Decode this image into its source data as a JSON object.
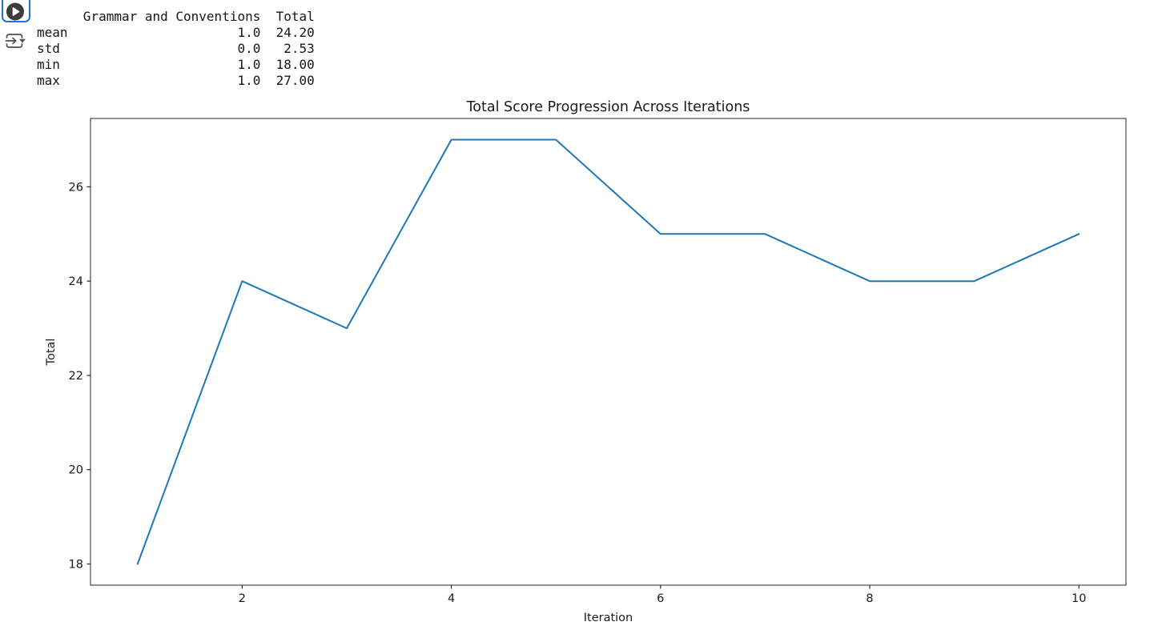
{
  "toolbar": {
    "run_cell_icon": "play-circle",
    "run_below_icon": "run-below-arrow"
  },
  "colors": {
    "cell_focus_border": "#2171d6",
    "run_button_fill": "#3c3c3c",
    "toolbar_icon": "#4f4f4f",
    "chart_text": "#1a1a1a",
    "axis": "#262626"
  },
  "output_table": {
    "columns": [
      "",
      "Grammar and Conventions",
      "Total"
    ],
    "rows": [
      {
        "index": "mean",
        "grammar_and_conventions": "1.0",
        "total": "24.20"
      },
      {
        "index": "std",
        "grammar_and_conventions": "0.0",
        "total": "2.53"
      },
      {
        "index": "min",
        "grammar_and_conventions": "1.0",
        "total": "18.00"
      },
      {
        "index": "max",
        "grammar_and_conventions": "1.0",
        "total": "27.00"
      }
    ],
    "lines": [
      "      Grammar and Conventions  Total",
      "mean                      1.0  24.20",
      "std                       0.0   2.53",
      "min                       1.0  18.00",
      "max                       1.0  27.00"
    ]
  },
  "chart_data": {
    "type": "line",
    "title": "Total Score Progression Across Iterations",
    "xlabel": "Iteration",
    "ylabel": "Total",
    "x": [
      1,
      2,
      3,
      4,
      5,
      6,
      7,
      8,
      9,
      10
    ],
    "y": [
      18,
      24,
      23,
      27,
      27,
      25,
      25,
      24,
      24,
      25
    ],
    "xlim": [
      0.55,
      10.45
    ],
    "ylim": [
      17.55,
      27.45
    ],
    "xticks": [
      2,
      4,
      6,
      8,
      10
    ],
    "yticks": [
      18,
      20,
      22,
      24,
      26
    ],
    "line_color": "#1f77b4",
    "grid": false,
    "legend_position": "none"
  }
}
